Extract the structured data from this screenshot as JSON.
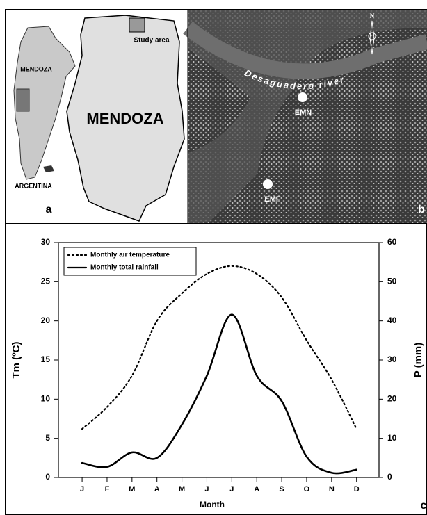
{
  "panel_a": {
    "study_area": "Study area",
    "province_large": "MENDOZA",
    "province_small": "MENDOZA",
    "country": "ARGENTINA",
    "panel_label": "a"
  },
  "panel_b": {
    "north": "N",
    "river": "Desaguadero river",
    "sites": [
      "EMN",
      "EMF"
    ],
    "panel_label": "b"
  },
  "chart_data": {
    "type": "line",
    "panel_label": "c",
    "x_label": "Month",
    "y_label": "Tm (ºC)",
    "y2_label": "P (mm)",
    "categories": [
      "J",
      "F",
      "M",
      "A",
      "M",
      "J",
      "J",
      "A",
      "S",
      "O",
      "N",
      "D"
    ],
    "series": [
      {
        "name": "Monthly air temperature",
        "color": "#000000",
        "dash": "dotted",
        "values": [
          6.2,
          9,
          13,
          20,
          23.5,
          26,
          27,
          26,
          23,
          17.5,
          12.5,
          6.2
        ]
      },
      {
        "name": "Monthly total rainfall",
        "color": "#000000",
        "dash": "solid",
        "axis": "y2",
        "values": [
          3.7,
          2.7,
          6.4,
          5.0,
          13.5,
          26,
          41.6,
          26,
          19.5,
          5.3,
          1.2,
          2.0
        ]
      }
    ],
    "ylim": [
      0,
      30
    ],
    "yticks": [
      0,
      5,
      10,
      15,
      20,
      25,
      30
    ],
    "y2lim": [
      0,
      60
    ],
    "y2ticks": [
      0,
      10,
      20,
      30,
      40,
      50,
      60
    ],
    "legend": "upper left"
  }
}
